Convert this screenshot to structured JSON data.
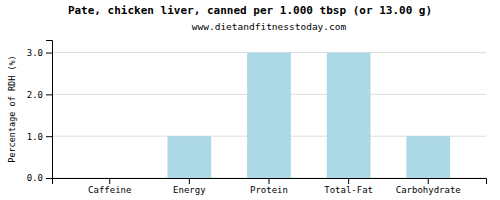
{
  "chart_data": {
    "type": "bar",
    "title": "Pate, chicken liver, canned per 1.000 tbsp (or 13.00 g)",
    "subtitle": "www.dietandfitnesstoday.com",
    "categories": [
      "Caffeine",
      "Energy",
      "Protein",
      "Total-Fat",
      "Carbohydrate"
    ],
    "values": [
      0.0,
      1.0,
      3.0,
      3.0,
      1.0
    ],
    "color": "#add8e6",
    "ylabel": "Percentage of RDH (%)",
    "ylim": [
      0,
      3.3
    ],
    "yticks": [
      {
        "value": 0.0,
        "label": "0.0"
      },
      {
        "value": 1.0,
        "label": "1.0"
      },
      {
        "value": 2.0,
        "label": "2.0"
      },
      {
        "value": 3.0,
        "label": "3.0"
      }
    ],
    "grid": true
  }
}
